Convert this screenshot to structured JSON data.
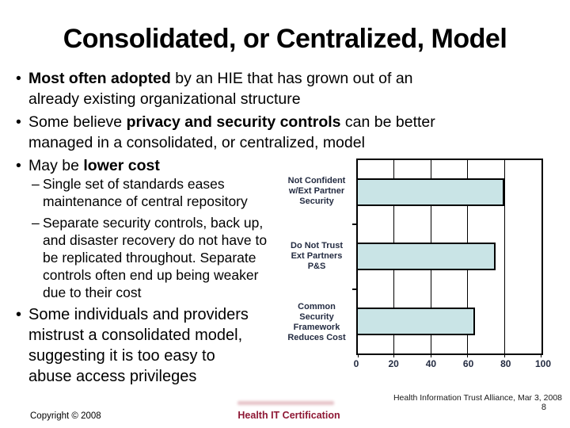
{
  "slide_title": "Consolidated, or Centralized, Model",
  "bullets": {
    "b1_bold": "Most often adopted",
    "b1_rest": " by an HIE that has grown out of an already existing organizational structure",
    "b2_pre": "Some believe ",
    "b2_bold": "privacy and security controls",
    "b2_post": " can be better managed in a consolidated, or centralized, model",
    "b3_pre": "May be ",
    "b3_bold": "lower cost",
    "sub_bullets": [
      "Single set of standards eases maintenance of central repository",
      "Separate security controls, back up, and disaster recovery do not have to be replicated throughout. Separate controls often end up being weaker due to their cost"
    ],
    "b4": "Some individuals and providers mistrust a consolidated model, suggesting it is too easy to abuse access privileges"
  },
  "chart_data": {
    "type": "bar",
    "orientation": "horizontal",
    "categories": [
      "Not Confident\nw/Ext Partner\nSecurity",
      "Do Not Trust\nExt Partners\nP&S",
      "Common\nSecurity\nFramework\nReduces Cost"
    ],
    "values": [
      79,
      74,
      63
    ],
    "xlim": [
      0,
      100
    ],
    "xticks": [
      0,
      20,
      40,
      60,
      80,
      100
    ],
    "grid": true,
    "legend": "none",
    "title": "",
    "xlabel": "",
    "ylabel": "",
    "bar_fill": "#c9e4e6",
    "bar_border": "#000000",
    "label_color": "#242c42"
  },
  "footer": {
    "source": "Health Information Trust Alliance, Mar 3, 2008",
    "page_number": "8",
    "copyright": "Copyright © 2008",
    "certification": "Health IT Certification",
    "certification_color": "#8e1734"
  }
}
